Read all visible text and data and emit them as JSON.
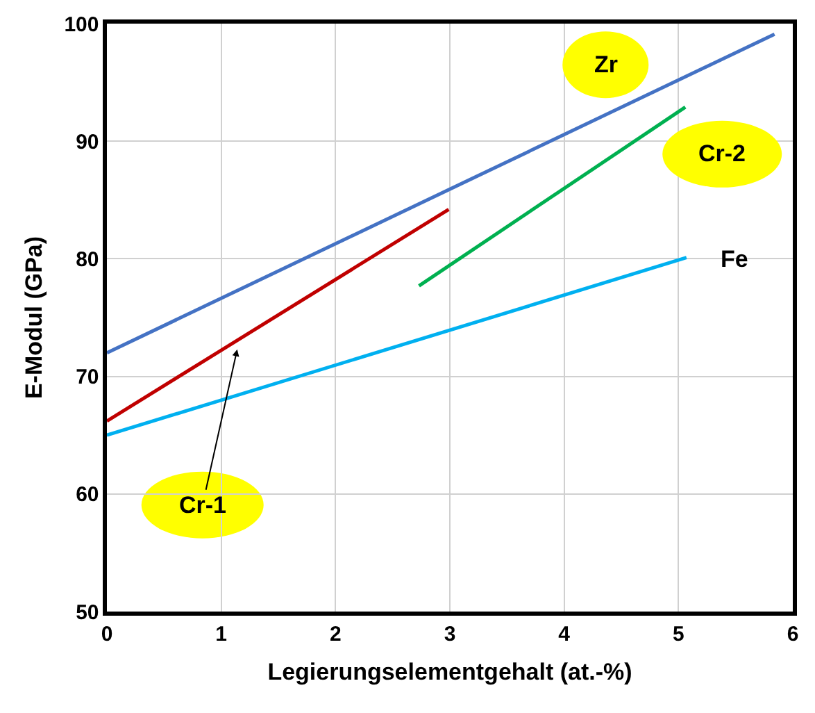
{
  "chart_data": {
    "type": "line",
    "xlabel": "Legierungselementgehalt (at.-%)",
    "ylabel": "E-Modul (GPa)",
    "xlim": [
      0,
      6
    ],
    "xticks": [
      0,
      1,
      2,
      3,
      4,
      5,
      6
    ],
    "ylim": [
      50,
      100
    ],
    "yticks": [
      50,
      60,
      70,
      80,
      90,
      100
    ],
    "grid": true,
    "legend": false,
    "marker": "none",
    "line_style": "solid",
    "series": [
      {
        "name": "Zr",
        "color": "#4472c4",
        "x": [
          0,
          5.84
        ],
        "values": [
          72,
          99.1
        ]
      },
      {
        "name": "Cr-2",
        "color": "#00b050",
        "x": [
          2.73,
          5.06
        ],
        "values": [
          77.7,
          92.9
        ]
      },
      {
        "name": "Fe",
        "color": "#00b0f0",
        "x": [
          0,
          5.07
        ],
        "values": [
          65,
          80.1
        ]
      },
      {
        "name": "Cr-1",
        "color": "#c00000",
        "x": [
          0,
          2.99
        ],
        "values": [
          66.2,
          84.2
        ]
      }
    ]
  }
}
